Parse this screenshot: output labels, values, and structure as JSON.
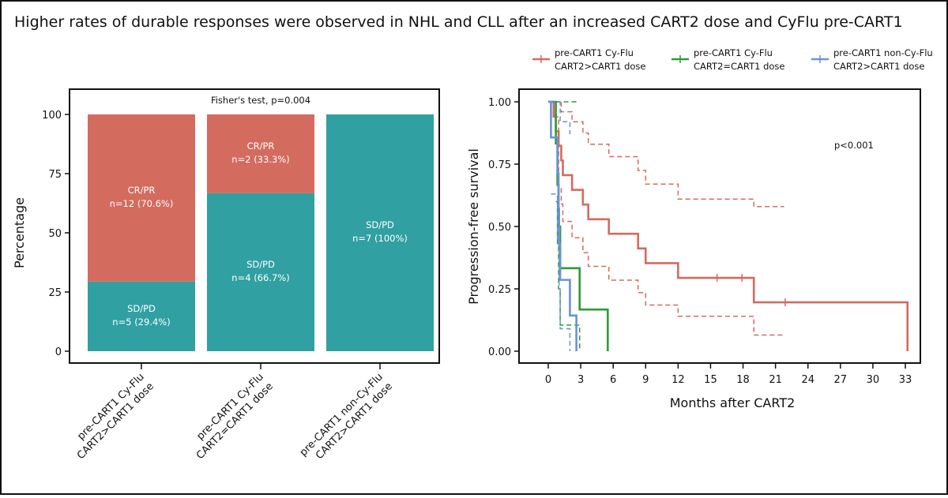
{
  "title": "Higher rates of durable responses were observed in NHL and CLL after an increased CART2 dose and CyFlu pre-CART1",
  "colors": {
    "red": "#d36b5f",
    "teal": "#30a0a2",
    "green": "#2e9a3a",
    "blue": "#6a93d4"
  },
  "chart_data": [
    {
      "type": "bar",
      "stacked": true,
      "annotation": "Fisher's test, p=0.004",
      "ylabel": "Percentage",
      "xlabel": "",
      "ylim": [
        0,
        100
      ],
      "yticks": [
        "0",
        "25",
        "50",
        "75",
        "100"
      ],
      "categories": [
        [
          "pre-CART1 Cy-Flu",
          "CART2>CART1 dose"
        ],
        [
          "pre-CART1 Cy-Flu",
          "CART2=CART1 dose"
        ],
        [
          "pre-CART1 non-Cy-Flu",
          "CART2>CART1 dose"
        ]
      ],
      "series": [
        {
          "name": "SD/PD",
          "color": "#30a0a2",
          "values": [
            29.4,
            66.7,
            100
          ],
          "labels": [
            "n=5 (29.4%)",
            "n=4 (66.7%)",
            "n=7 (100%)"
          ]
        },
        {
          "name": "CR/PR",
          "color": "#d36b5f",
          "values": [
            70.6,
            33.3,
            0
          ],
          "labels": [
            "n=12 (70.6%)",
            "n=2 (33.3%)",
            ""
          ]
        }
      ],
      "grid": false
    },
    {
      "type": "line",
      "subtype": "kaplan-meier step",
      "ylabel": "Progression-free survival",
      "xlabel": "Months after CART2",
      "xlim": [
        0,
        33
      ],
      "ylim": [
        0,
        1
      ],
      "xticks": [
        "0",
        "3",
        "6",
        "9",
        "12",
        "15",
        "18",
        "21",
        "24",
        "27",
        "30",
        "33"
      ],
      "yticks": [
        "0.00",
        "0.25",
        "0.50",
        "0.75",
        "1.00"
      ],
      "annotation": "p<0.001",
      "legend_position": "top",
      "grid": false,
      "series": [
        {
          "name": "pre-CART1 Cy-Flu\nCART2>CART1 dose",
          "legend": [
            "pre-CART1 Cy-Flu",
            "CART2>CART1 dose"
          ],
          "color": "#d36b5f",
          "steps": [
            [
              0,
              1.0
            ],
            [
              0.5,
              0.941
            ],
            [
              0.7,
              0.882
            ],
            [
              0.96,
              0.824
            ],
            [
              1.2,
              0.765
            ],
            [
              1.35,
              0.706
            ],
            [
              2.2,
              0.647
            ],
            [
              3.2,
              0.588
            ],
            [
              3.7,
              0.529
            ],
            [
              5.6,
              0.471
            ],
            [
              8.3,
              0.412
            ],
            [
              9.0,
              0.353
            ],
            [
              12.0,
              0.294
            ],
            [
              19.0,
              0.196
            ]
          ],
          "end": 33.2,
          "end_value": 0,
          "censored": [
            [
              15.6,
              0.294
            ],
            [
              17.9,
              0.294
            ],
            [
              21.9,
              0.196
            ]
          ],
          "ci_upper": [
            [
              0.5,
              1.0
            ],
            [
              1.2,
              0.96
            ],
            [
              2.2,
              0.92
            ],
            [
              3.2,
              0.875
            ],
            [
              3.7,
              0.83
            ],
            [
              5.6,
              0.78
            ],
            [
              8.3,
              0.725
            ],
            [
              9.0,
              0.67
            ],
            [
              12.0,
              0.61
            ],
            [
              19.0,
              0.58
            ]
          ],
          "ci_lower": [
            [
              0.5,
              0.94
            ],
            [
              0.96,
              0.66
            ],
            [
              1.2,
              0.59
            ],
            [
              1.35,
              0.52
            ],
            [
              2.2,
              0.455
            ],
            [
              3.2,
              0.395
            ],
            [
              3.7,
              0.34
            ],
            [
              5.6,
              0.285
            ],
            [
              8.3,
              0.235
            ],
            [
              9.0,
              0.185
            ],
            [
              12.0,
              0.14
            ],
            [
              19.0,
              0.065
            ]
          ],
          "ci_end": 21.8
        },
        {
          "name": "pre-CART1 Cy-Flu\nCART2=CART1 dose",
          "legend": [
            "pre-CART1 Cy-Flu",
            "CART2=CART1 dose"
          ],
          "color": "#2e9a3a",
          "steps": [
            [
              0,
              1.0
            ],
            [
              0.7,
              0.833
            ],
            [
              0.85,
              0.667
            ],
            [
              0.95,
              0.5
            ],
            [
              1.1,
              0.333
            ],
            [
              2.9,
              0.167
            ]
          ],
          "end": 5.5,
          "end_value": 0,
          "censored": [],
          "ci_upper": [
            [
              0.7,
              1.0
            ]
          ],
          "ci_lower": [
            [
              0.7,
              0.6
            ],
            [
              0.85,
              0.42
            ],
            [
              0.95,
              0.25
            ],
            [
              1.1,
              0.105
            ]
          ],
          "ci_end": 2.9
        },
        {
          "name": "pre-CART1 non-Cy-Flu\nCART2>CART1 dose",
          "legend": [
            "pre-CART1 non-Cy-Flu",
            "CART2>CART1 dose"
          ],
          "color": "#6a93d4",
          "steps": [
            [
              0,
              1.0
            ],
            [
              0.25,
              0.857
            ],
            [
              0.85,
              0.714
            ],
            [
              0.95,
              0.571
            ],
            [
              1.0,
              0.429
            ],
            [
              1.1,
              0.286
            ],
            [
              2.0,
              0.143
            ]
          ],
          "end": 2.6,
          "end_value": 0,
          "censored": [],
          "ci_upper": [
            [
              0.25,
              1.0
            ],
            [
              1.1,
              0.92
            ],
            [
              2.0,
              0.87
            ]
          ],
          "ci_lower": [
            [
              0.25,
              0.63
            ],
            [
              0.85,
              0.45
            ],
            [
              1.0,
              0.25
            ],
            [
              1.1,
              0.09
            ]
          ],
          "ci_end": 2.0
        }
      ]
    }
  ]
}
